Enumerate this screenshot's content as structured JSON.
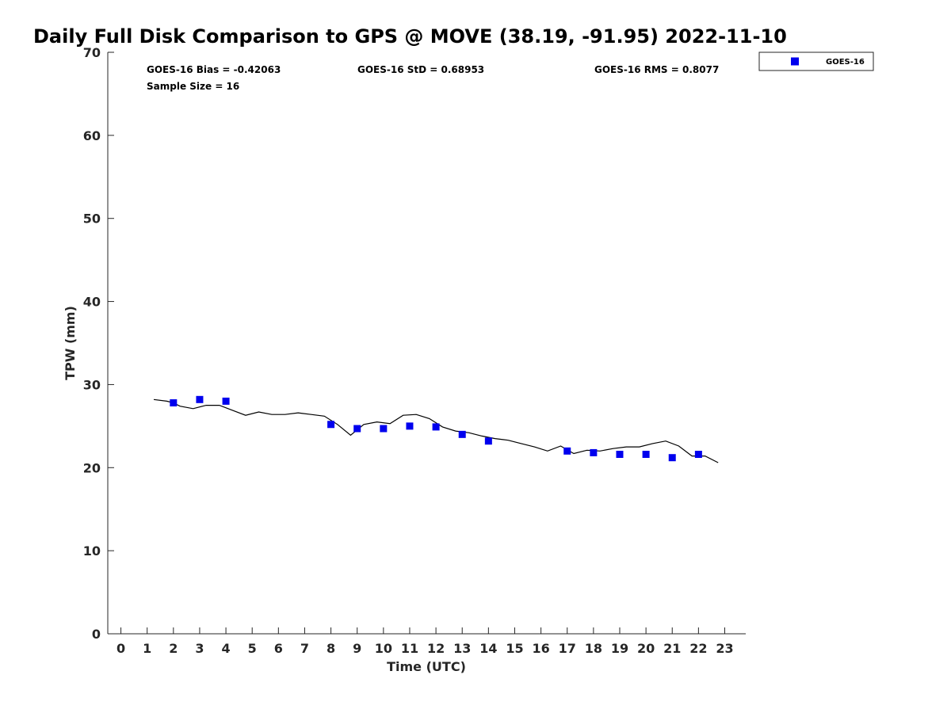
{
  "chart_data": {
    "type": "scatter",
    "title": "Daily Full Disk Comparison to GPS @ MOVE (38.19, -91.95) 2022-11-10",
    "xlabel": "Time (UTC)",
    "ylabel": "TPW (mm)",
    "xlim": [
      -0.5,
      23.8
    ],
    "ylim": [
      0,
      70
    ],
    "xticks": [
      0,
      1,
      2,
      3,
      4,
      5,
      6,
      7,
      8,
      9,
      10,
      11,
      12,
      13,
      14,
      15,
      16,
      17,
      18,
      19,
      20,
      21,
      22,
      23
    ],
    "yticks": [
      0,
      10,
      20,
      30,
      40,
      50,
      60,
      70
    ],
    "grid": false,
    "legend_position": "top-right, outside plot",
    "stats": {
      "bias": "GOES-16 Bias = -0.42063",
      "std": "GOES-16 StD = 0.68953",
      "rms": "GOES-16 RMS = 0.8077",
      "sample": "Sample Size = 16"
    },
    "series": [
      {
        "name": "GOES-16",
        "marker": "square",
        "color": "#0000ee",
        "x": [
          2,
          3,
          4,
          8,
          9,
          10,
          11,
          12,
          13,
          14,
          17,
          18,
          19,
          20,
          21,
          22
        ],
        "y": [
          27.8,
          28.2,
          28.0,
          25.2,
          24.7,
          24.7,
          25.0,
          24.9,
          24.0,
          23.2,
          22.0,
          21.8,
          21.6,
          21.6,
          21.2,
          21.6
        ]
      },
      {
        "kind": "line",
        "color": "#000000",
        "x": [
          1.25,
          1.75,
          2.0,
          2.25,
          2.75,
          3.25,
          3.75,
          4.25,
          4.75,
          5.25,
          5.75,
          6.25,
          6.75,
          7.25,
          7.75,
          8.25,
          8.75,
          9.25,
          9.75,
          10.25,
          10.75,
          11.25,
          11.75,
          12.25,
          12.75,
          13.25,
          13.75,
          14.25,
          14.75,
          15.25,
          15.75,
          16.25,
          16.75,
          17.25,
          17.75,
          18.25,
          18.75,
          19.25,
          19.75,
          20.25,
          20.75,
          21.25,
          21.75,
          22.25,
          22.75
        ],
        "y": [
          28.2,
          28.0,
          27.8,
          27.4,
          27.1,
          27.5,
          27.5,
          26.9,
          26.3,
          26.7,
          26.4,
          26.4,
          26.6,
          26.4,
          26.2,
          25.2,
          23.9,
          25.2,
          25.5,
          25.3,
          26.3,
          26.4,
          25.9,
          24.9,
          24.4,
          24.2,
          23.8,
          23.5,
          23.3,
          22.9,
          22.5,
          22.0,
          22.6,
          21.7,
          22.1,
          22.0,
          22.3,
          22.5,
          22.5,
          22.9,
          23.2,
          22.6,
          21.4,
          21.4,
          20.6
        ]
      }
    ]
  }
}
